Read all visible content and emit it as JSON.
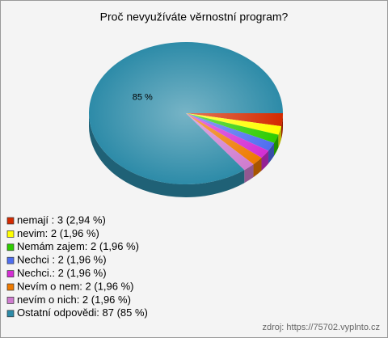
{
  "chart_data": {
    "type": "pie3d",
    "title": "Proč nevyužíváte věrnostní program?",
    "categories": [
      "nemají : 3 (2,94 %)",
      "nevim: 2 (1,96 %)",
      "Nemám zajem: 2 (1,96 %)",
      "Nechci : 2 (1,96 %)",
      "Nechci.: 2 (1,96 %)",
      "Nevím o nem: 2 (1,96 %)",
      "nevím o nich: 2 (1,96 %)",
      "Ostatní odpovědi: 87 (85 %)"
    ],
    "values": [
      3,
      2,
      2,
      2,
      2,
      2,
      2,
      87
    ],
    "value_labels": [
      null,
      null,
      null,
      null,
      null,
      null,
      null,
      "85 %"
    ],
    "colors": [
      "#d42a00",
      "#ffff00",
      "#2ecc00",
      "#4f6ef0",
      "#d42ed4",
      "#ee7a00",
      "#cf7ccf",
      "#2d8ba8"
    ],
    "source": "zdroj: https://75702.vyplnto.cz"
  }
}
